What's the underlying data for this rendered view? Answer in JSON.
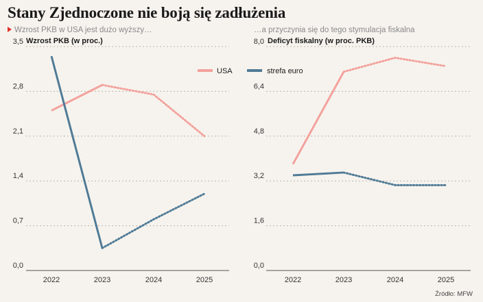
{
  "title": "Stany Zjednoczone nie boją się zadłużenia",
  "subtitle_left": "Wzrost PKB w USA jest dużo wyższy…",
  "subtitle_right": "…a przyczynia się do tego stymulacja fiskalna",
  "source": "Źródło: MFW",
  "colors": {
    "usa": "#f4a19c",
    "euro": "#507b96"
  },
  "legend": [
    {
      "name": "USA",
      "color": "#f4a19c"
    },
    {
      "name": "strefa euro",
      "color": "#507b96"
    }
  ],
  "chart_data": [
    {
      "type": "line",
      "ylabel": "Wzrost PKB (w proc.)",
      "categories": [
        "2022",
        "2023",
        "2024",
        "2025"
      ],
      "ylim": [
        0,
        3.5
      ],
      "yticks": [
        "0,0",
        "0,7",
        "1,4",
        "2,1",
        "2,8",
        "3,5"
      ],
      "grid": true,
      "legend_position": "top-right",
      "series": [
        {
          "name": "USA",
          "values": [
            2.5,
            2.9,
            2.75,
            2.1
          ],
          "dashed_from_index": 1
        },
        {
          "name": "strefa euro",
          "values": [
            3.35,
            0.35,
            0.8,
            1.2
          ],
          "dashed_from_index": 1
        }
      ]
    },
    {
      "type": "line",
      "ylabel": "Deficyt fiskalny (w proc. PKB)",
      "categories": [
        "2022",
        "2023",
        "2024",
        "2025"
      ],
      "ylim": [
        0,
        8.0
      ],
      "yticks": [
        "0,0",
        "1,6",
        "3,2",
        "4,8",
        "6,4",
        "8,0"
      ],
      "grid": true,
      "series": [
        {
          "name": "USA",
          "values": [
            3.8,
            7.1,
            7.6,
            7.3
          ],
          "dashed_from_index": 1
        },
        {
          "name": "strefa euro",
          "values": [
            3.4,
            3.5,
            3.05,
            3.05
          ],
          "dashed_from_index": 1
        }
      ]
    }
  ]
}
